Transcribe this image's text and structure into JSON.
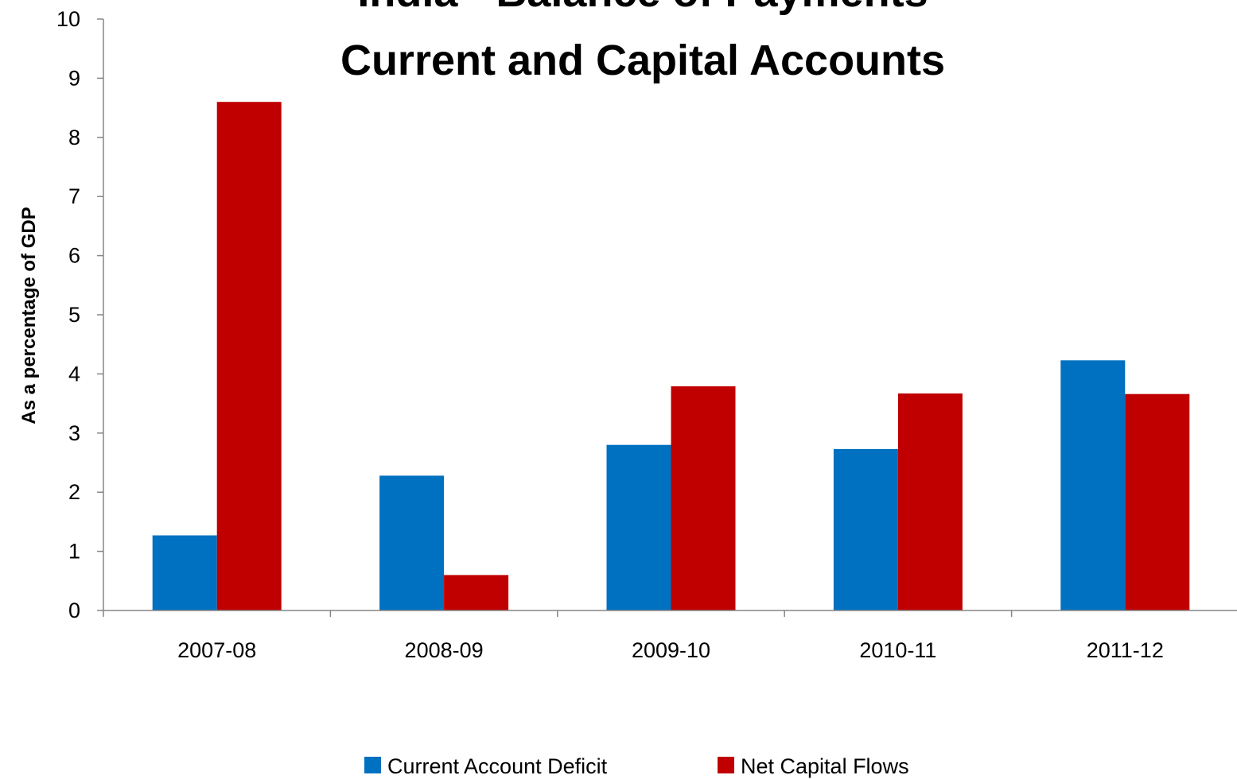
{
  "chart_data": {
    "type": "bar",
    "title": [
      "India - Balance of Payments",
      "Current and Capital Accounts"
    ],
    "xlabel": "",
    "ylabel": "As a percentage of GDP",
    "ylim": [
      0,
      10
    ],
    "yticks": [
      "0",
      "1",
      "2",
      "3",
      "4",
      "5",
      "6",
      "7",
      "8",
      "9",
      "10"
    ],
    "categories": [
      "2007-08",
      "2008-09",
      "2009-10",
      "2010-11",
      "2011-12"
    ],
    "series": [
      {
        "name": "Current Account Deficit",
        "color": "#0070C0",
        "values": [
          1.27,
          2.28,
          2.8,
          2.73,
          4.23
        ]
      },
      {
        "name": "Net Capital Flows",
        "color": "#C00000",
        "values": [
          8.6,
          0.6,
          3.79,
          3.67,
          3.66
        ]
      }
    ],
    "grid": false,
    "legend": "bottom"
  }
}
